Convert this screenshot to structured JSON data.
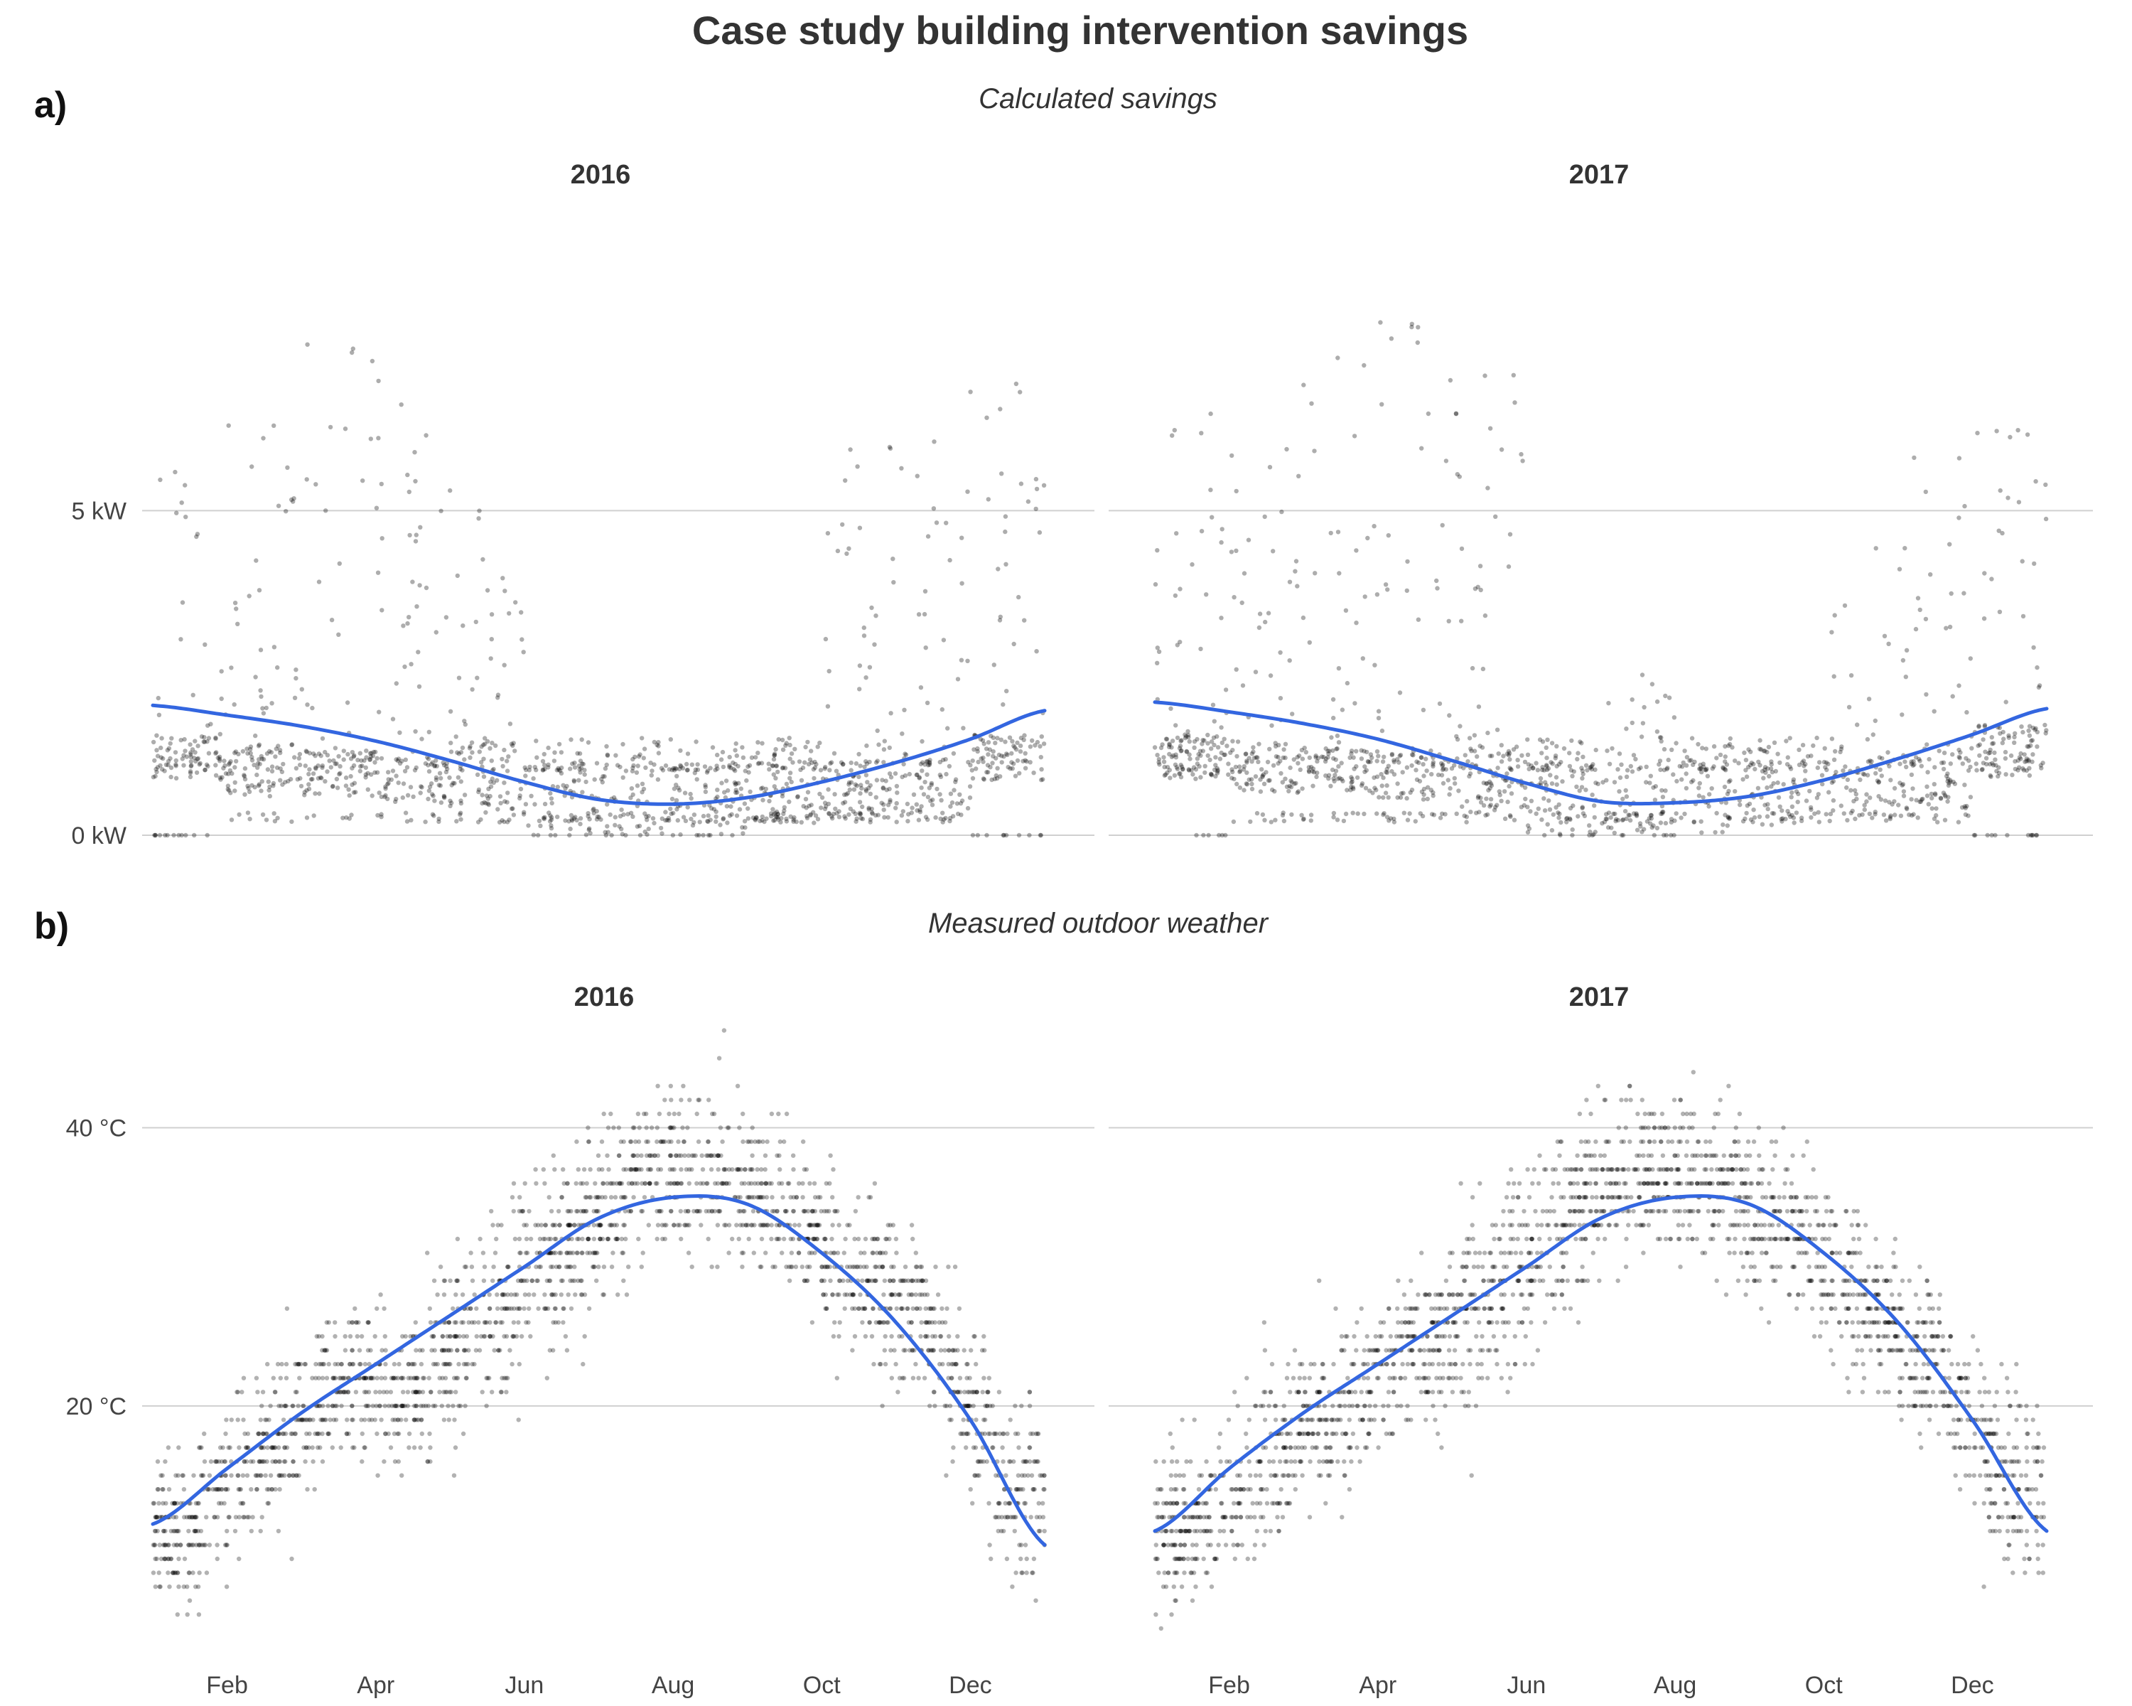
{
  "title": "Case study building intervention savings",
  "panels": [
    {
      "tag": "a)",
      "subtitle": "Calculated savings"
    },
    {
      "tag": "b)",
      "subtitle": "Measured outdoor weather"
    }
  ],
  "colors": {
    "points": "#000000",
    "trend": "#3366e0",
    "grid": "#d0d0d0"
  },
  "chart_data": [
    {
      "type": "scatter",
      "panel": "a)",
      "subtitle": "Calculated savings",
      "facets": [
        "2016",
        "2017"
      ],
      "xlabel": "",
      "ylabel": "",
      "x_ticks": [
        "Feb",
        "Apr",
        "Jun",
        "Aug",
        "Oct",
        "Dec"
      ],
      "x_ticks_shown": false,
      "y_ticks": [
        0,
        5
      ],
      "y_tick_labels": [
        "0 kW",
        "5 kW"
      ],
      "ylim": [
        0,
        9.8
      ],
      "grid": true,
      "trend": {
        "months": [
          0,
          1,
          2,
          3,
          4,
          5,
          6,
          7,
          8,
          9,
          10,
          11,
          12
        ],
        "values_2016": [
          2.0,
          1.85,
          1.68,
          1.45,
          1.15,
          0.82,
          0.55,
          0.48,
          0.58,
          0.82,
          1.12,
          1.48,
          1.92
        ],
        "values_2017": [
          2.05,
          1.9,
          1.72,
          1.48,
          1.15,
          0.8,
          0.52,
          0.5,
          0.6,
          0.85,
          1.18,
          1.55,
          1.95
        ]
      },
      "scatter_monthly": {
        "2016": {
          "bulk_center": [
            1.0,
            0.8,
            0.75,
            0.65,
            0.7,
            0.35,
            0.3,
            0.3,
            0.45,
            0.5,
            0.6,
            1.0
          ],
          "bulk_spread": [
            0.35,
            0.4,
            0.35,
            0.35,
            0.55,
            0.6,
            0.6,
            0.6,
            0.5,
            0.45,
            0.5,
            0.35
          ],
          "upper_max": [
            6.9,
            6.4,
            8.8,
            7.0,
            5.0,
            1.5,
            1.5,
            1.5,
            1.5,
            6.0,
            6.3,
            7.2
          ]
        },
        "2017": {
          "bulk_center": [
            1.0,
            0.85,
            0.8,
            0.7,
            0.65,
            0.3,
            0.3,
            0.35,
            0.45,
            0.55,
            0.7,
            1.1
          ],
          "bulk_spread": [
            0.35,
            0.4,
            0.35,
            0.35,
            0.55,
            0.6,
            0.6,
            0.6,
            0.5,
            0.45,
            0.5,
            0.4
          ],
          "upper_max": [
            6.5,
            6.2,
            7.5,
            8.0,
            7.5,
            1.5,
            2.5,
            1.5,
            1.5,
            4.5,
            6.0,
            6.5
          ]
        }
      }
    },
    {
      "type": "scatter",
      "panel": "b)",
      "subtitle": "Measured outdoor weather",
      "facets": [
        "2016",
        "2017"
      ],
      "xlabel": "",
      "ylabel": "",
      "x_ticks": [
        "Feb",
        "Apr",
        "Jun",
        "Aug",
        "Oct",
        "Dec"
      ],
      "x_ticks_shown": true,
      "y_ticks": [
        20,
        40
      ],
      "y_tick_labels": [
        "20 °C",
        "40 °C"
      ],
      "ylim": [
        2,
        48
      ],
      "grid": true,
      "trend": {
        "months": [
          0,
          1,
          2,
          3,
          4,
          5,
          6,
          7,
          8,
          9,
          10,
          11,
          12
        ],
        "values_2016": [
          11.5,
          15.5,
          19.5,
          23.0,
          26.5,
          30.0,
          33.5,
          35.0,
          34.5,
          31.0,
          26.0,
          19.0,
          10.0
        ],
        "values_2017": [
          11.0,
          15.5,
          19.5,
          23.0,
          26.5,
          30.0,
          33.5,
          35.0,
          34.5,
          31.0,
          26.0,
          19.0,
          11.0
        ]
      },
      "scatter_monthly": {
        "2016": {
          "center": [
            11,
            17,
            22,
            21,
            26,
            31,
            36,
            37,
            34,
            29,
            26,
            14
          ],
          "spread": [
            5,
            5.5,
            5,
            5,
            6,
            6,
            5,
            5,
            5,
            5,
            5,
            6
          ]
        },
        "2017": {
          "center": [
            11,
            16,
            20,
            24,
            27,
            33,
            37,
            36,
            33,
            28,
            23,
            14
          ],
          "spread": [
            5,
            5.5,
            5,
            5,
            6,
            6,
            5,
            5,
            5,
            5,
            5,
            6
          ]
        }
      }
    }
  ]
}
